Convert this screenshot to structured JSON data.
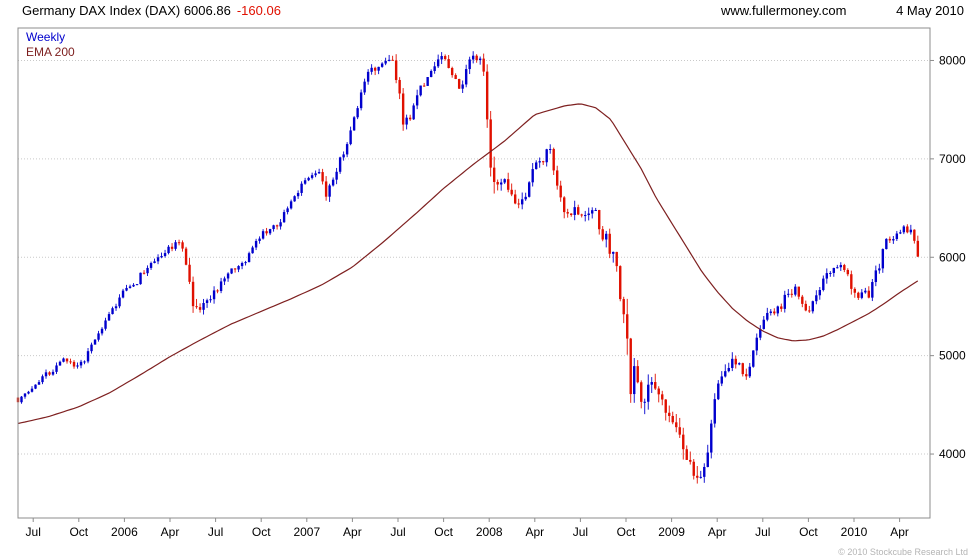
{
  "header": {
    "title": "Germany DAX Index (DAX) 6006.86",
    "change": "-160.06",
    "website": "www.fullermoney.com",
    "date": "4 May 2010"
  },
  "legend": {
    "weekly": "Weekly",
    "ema": "EMA 200"
  },
  "footer": {
    "copyright": "© 2010 Stockcube Research Ltd"
  },
  "colors": {
    "up": "#0000cd",
    "down": "#e01000",
    "ema": "#7e2020",
    "grid": "#c9c9c9",
    "border": "#8c8c8c",
    "axis_text": "#000000",
    "change_text": "#e01000",
    "copyright_text": "#b4b4b4",
    "background": "#ffffff"
  },
  "chart_data": {
    "type": "candlestick",
    "interval": "weekly",
    "title": "Germany DAX Index (DAX)",
    "overlay": "EMA 200",
    "last_close": 6006.86,
    "last_change": -160.06,
    "ylim": [
      3350,
      8330
    ],
    "y_ticks": [
      4000,
      5000,
      6000,
      7000,
      8000
    ],
    "x_span": 60,
    "data_span": 59.2,
    "weeks": 258,
    "x_ticks": [
      [
        1,
        "Jul"
      ],
      [
        4,
        "Oct"
      ],
      [
        7,
        "2006"
      ],
      [
        10,
        "Apr"
      ],
      [
        13,
        "Jul"
      ],
      [
        16,
        "Oct"
      ],
      [
        19,
        "2007"
      ],
      [
        22,
        "Apr"
      ],
      [
        25,
        "Jul"
      ],
      [
        28,
        "Oct"
      ],
      [
        31,
        "2008"
      ],
      [
        34,
        "Apr"
      ],
      [
        37,
        "Jul"
      ],
      [
        40,
        "Oct"
      ],
      [
        43,
        "2009"
      ],
      [
        46,
        "Apr"
      ],
      [
        49,
        "Jul"
      ],
      [
        52,
        "Oct"
      ],
      [
        55,
        "2010"
      ],
      [
        58,
        "Apr"
      ]
    ],
    "price_anchors": [
      [
        0,
        4560,
        60
      ],
      [
        1,
        4680,
        60
      ],
      [
        2,
        4830,
        70
      ],
      [
        3,
        4970,
        70
      ],
      [
        4,
        4850,
        80
      ],
      [
        5,
        5150,
        70
      ],
      [
        6,
        5410,
        60
      ],
      [
        7,
        5650,
        80
      ],
      [
        8,
        5790,
        80
      ],
      [
        9,
        5970,
        80
      ],
      [
        10,
        6090,
        90
      ],
      [
        10.8,
        6120,
        110
      ],
      [
        11.3,
        5700,
        160
      ],
      [
        11.8,
        5400,
        170
      ],
      [
        12.5,
        5560,
        130
      ],
      [
        13,
        5680,
        100
      ],
      [
        14,
        5840,
        80
      ],
      [
        15,
        5990,
        70
      ],
      [
        16,
        6250,
        70
      ],
      [
        17,
        6330,
        80
      ],
      [
        18,
        6580,
        70
      ],
      [
        19,
        6790,
        80
      ],
      [
        19.8,
        6880,
        90
      ],
      [
        20.3,
        6640,
        130
      ],
      [
        21,
        6900,
        100
      ],
      [
        22,
        7350,
        90
      ],
      [
        23,
        7870,
        90
      ],
      [
        24,
        7950,
        110
      ],
      [
        24.6,
        8090,
        120
      ],
      [
        25.4,
        7330,
        190
      ],
      [
        26,
        7540,
        150
      ],
      [
        27,
        7860,
        120
      ],
      [
        28,
        8020,
        110
      ],
      [
        29,
        7700,
        140
      ],
      [
        30,
        8050,
        110
      ],
      [
        30.6,
        7920,
        150
      ],
      [
        31.2,
        6780,
        280
      ],
      [
        32,
        6750,
        180
      ],
      [
        33,
        6520,
        170
      ],
      [
        34,
        6940,
        140
      ],
      [
        35,
        7080,
        120
      ],
      [
        36,
        6420,
        150
      ],
      [
        37,
        6460,
        150
      ],
      [
        38,
        6420,
        140
      ],
      [
        39,
        6060,
        200
      ],
      [
        39.8,
        5500,
        350
      ],
      [
        40.3,
        4780,
        430
      ],
      [
        41,
        4560,
        300
      ],
      [
        42,
        4750,
        220
      ],
      [
        43,
        4400,
        250
      ],
      [
        44,
        3880,
        230
      ],
      [
        44.8,
        3680,
        240
      ],
      [
        45.5,
        4100,
        240
      ],
      [
        46,
        4750,
        180
      ],
      [
        47,
        4950,
        150
      ],
      [
        48,
        4810,
        130
      ],
      [
        49,
        5330,
        130
      ],
      [
        50,
        5470,
        120
      ],
      [
        51,
        5680,
        120
      ],
      [
        52,
        5450,
        140
      ],
      [
        53,
        5770,
        120
      ],
      [
        54,
        5950,
        100
      ],
      [
        55,
        5650,
        150
      ],
      [
        56,
        5600,
        140
      ],
      [
        57,
        6120,
        100
      ],
      [
        58,
        6230,
        110
      ],
      [
        58.7,
        6300,
        110
      ],
      [
        59.2,
        6006.86,
        130
      ]
    ],
    "ema_anchors": [
      [
        0,
        4310
      ],
      [
        2,
        4380
      ],
      [
        4,
        4480
      ],
      [
        6,
        4620
      ],
      [
        8,
        4800
      ],
      [
        10,
        4990
      ],
      [
        12,
        5160
      ],
      [
        14,
        5320
      ],
      [
        16,
        5450
      ],
      [
        18,
        5580
      ],
      [
        20,
        5720
      ],
      [
        22,
        5900
      ],
      [
        24,
        6150
      ],
      [
        26,
        6420
      ],
      [
        28,
        6700
      ],
      [
        30,
        6950
      ],
      [
        32,
        7180
      ],
      [
        34,
        7450
      ],
      [
        36,
        7540
      ],
      [
        37,
        7560
      ],
      [
        38,
        7520
      ],
      [
        39,
        7400
      ],
      [
        40,
        7150
      ],
      [
        41,
        6900
      ],
      [
        42,
        6600
      ],
      [
        43,
        6350
      ],
      [
        44,
        6100
      ],
      [
        45,
        5850
      ],
      [
        46,
        5650
      ],
      [
        47,
        5480
      ],
      [
        48,
        5350
      ],
      [
        49,
        5250
      ],
      [
        50,
        5180
      ],
      [
        51,
        5150
      ],
      [
        52,
        5160
      ],
      [
        53,
        5200
      ],
      [
        54,
        5270
      ],
      [
        55,
        5350
      ],
      [
        56,
        5430
      ],
      [
        57,
        5530
      ],
      [
        58,
        5640
      ],
      [
        59.2,
        5760
      ]
    ]
  }
}
